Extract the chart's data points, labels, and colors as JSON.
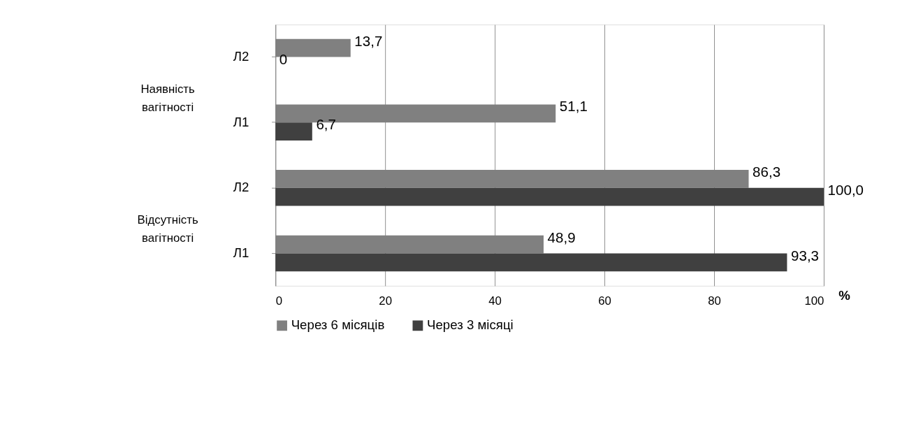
{
  "chart_data": {
    "type": "bar",
    "orientation": "horizontal",
    "xlabel": "%",
    "categories": [
      "Л2",
      "Л1",
      "Л2",
      "Л1"
    ],
    "series": [
      {
        "name": "Через 6 місяців",
        "color": "#808080",
        "values": [
          13.7,
          51.1,
          86.3,
          48.9
        ],
        "value_labels": [
          "13,7",
          "51,1",
          "86,3",
          "48,9"
        ]
      },
      {
        "name": "Через 3 місяці",
        "color": "#404040",
        "values": [
          0,
          6.7,
          100.0,
          93.3
        ],
        "value_labels": [
          "0",
          "6,7",
          "100,0",
          "93,3"
        ]
      }
    ],
    "xlim": [
      0,
      100
    ],
    "xticks": [
      0,
      20,
      40,
      60,
      80,
      100
    ],
    "grid": "x",
    "legend": "bottom",
    "annotations": [
      "Наявність вагітності",
      "Відсутність вагітності"
    ]
  }
}
